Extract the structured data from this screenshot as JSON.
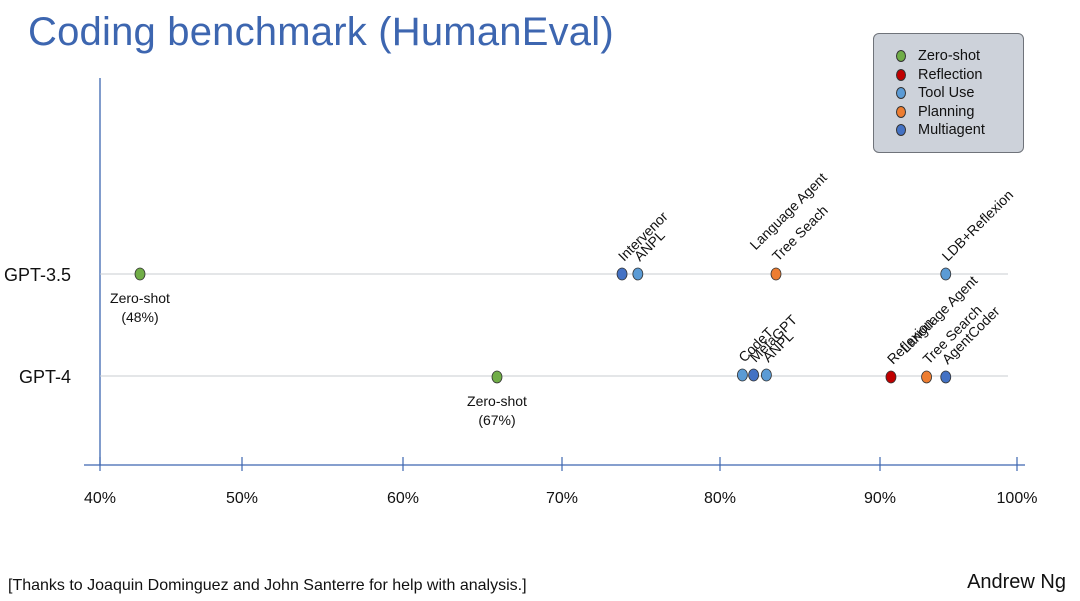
{
  "chart_data": {
    "type": "scatter",
    "title": "Coding benchmark (HumanEval)",
    "xlabel": "",
    "ylabel": "",
    "xlim": [
      40,
      100
    ],
    "x_ticks": [
      "40%",
      "50%",
      "60%",
      "70%",
      "80%",
      "90%",
      "100%"
    ],
    "x_tick_values": [
      40,
      50,
      60,
      70,
      80,
      90,
      100
    ],
    "rows": [
      "GPT-3.5",
      "GPT-4"
    ],
    "legend": {
      "position": "top-right",
      "entries": [
        {
          "name": "Zero-shot",
          "color": "#70ad47"
        },
        {
          "name": "Reflection",
          "color": "#c00000"
        },
        {
          "name": "Tool Use",
          "color": "#5b9bd5"
        },
        {
          "name": "Planning",
          "color": "#ed7d31"
        },
        {
          "name": "Multiagent",
          "color": "#4472c4"
        }
      ]
    },
    "points": [
      {
        "row": "GPT-3.5",
        "x": 48,
        "category": "Zero-shot",
        "label": [
          "Zero-shot",
          "(48%)"
        ],
        "label_style": "below"
      },
      {
        "row": "GPT-3.5",
        "x": 73.8,
        "category": "Multiagent",
        "label": [
          "Intervenor"
        ],
        "label_style": "rotated"
      },
      {
        "row": "GPT-3.5",
        "x": 74.8,
        "category": "Tool Use",
        "label": [
          "ANPL"
        ],
        "label_style": "rotated"
      },
      {
        "row": "GPT-3.5",
        "x": 83.5,
        "category": "Planning",
        "label": [
          "Language Agent",
          "Tree Seach"
        ],
        "label_style": "rotated"
      },
      {
        "row": "GPT-3.5",
        "x": 94.8,
        "category": "Tool Use",
        "label": [
          "LDB+Reflexion"
        ],
        "label_style": "rotated"
      },
      {
        "row": "GPT-4",
        "x": 67,
        "category": "Zero-shot",
        "label": [
          "Zero-shot",
          "(67%)"
        ],
        "label_style": "below"
      },
      {
        "row": "GPT-4",
        "x": 81.4,
        "category": "Tool Use",
        "label": [
          "CodeT"
        ],
        "label_style": "rotated"
      },
      {
        "row": "GPT-4",
        "x": 82.1,
        "category": "Multiagent",
        "label": [
          "MetaGPT"
        ],
        "label_style": "rotated"
      },
      {
        "row": "GPT-4",
        "x": 82.9,
        "category": "Tool Use",
        "label": [
          "ANPL"
        ],
        "label_style": "rotated"
      },
      {
        "row": "GPT-4",
        "x": 90.8,
        "category": "Reflection",
        "label": [
          "Reflexion"
        ],
        "label_style": "rotated"
      },
      {
        "row": "GPT-4",
        "x": 93.4,
        "category": "Planning",
        "label": [
          "Language Agent",
          "Tree Search"
        ],
        "label_style": "rotated"
      },
      {
        "row": "GPT-4",
        "x": 94.8,
        "category": "Multiagent",
        "label": [
          "AgentCoder"
        ],
        "label_style": "rotated"
      }
    ]
  },
  "footer": {
    "credits": "[Thanks to Joaquin Dominguez and John Santerre for help with analysis.]",
    "author": "Andrew Ng"
  }
}
